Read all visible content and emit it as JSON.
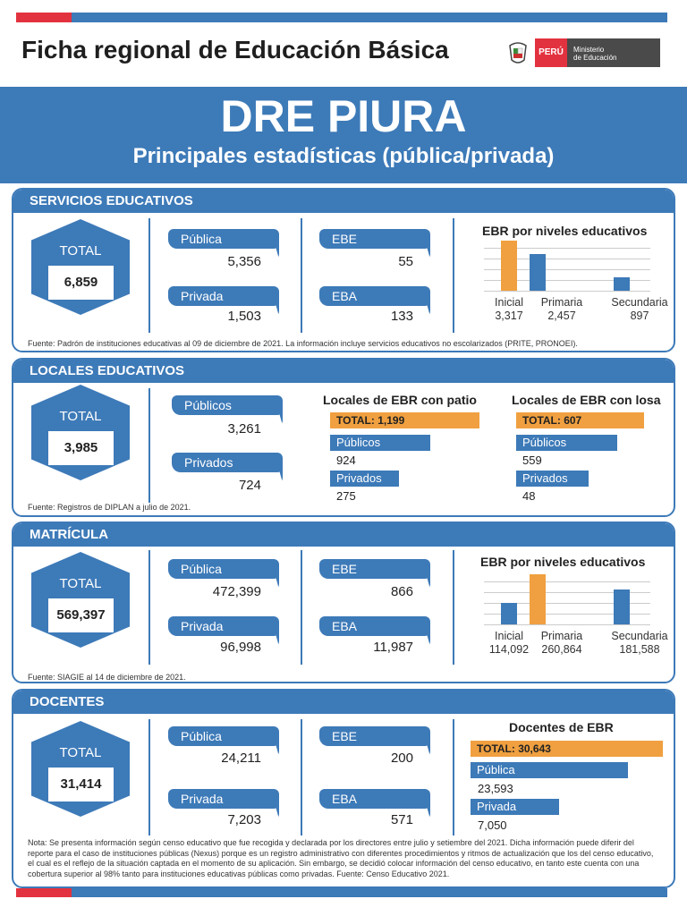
{
  "header": {
    "title": "Ficha regional de Educación Básica",
    "logo_peru": "PERÚ",
    "logo_ministry_1": "Ministerio",
    "logo_ministry_2": "de Educación"
  },
  "banner": {
    "title": "DRE PIURA",
    "subtitle": "Principales estadísticas (pública/privada)"
  },
  "colors": {
    "blue": "#3d7ab8",
    "red": "#e3323f",
    "orange": "#f0a040"
  },
  "servicios": {
    "title": "SERVICIOS EDUCATIVOS",
    "total_label": "TOTAL",
    "total": "6,859",
    "publica_label": "Pública",
    "publica": "5,356",
    "privada_label": "Privada",
    "privada": "1,503",
    "ebe_label": "EBE",
    "ebe": "55",
    "eba_label": "EBA",
    "eba": "133",
    "source": "Fuente: Padrón de instituciones educativas al 09 de diciembre de 2021. La información incluye servicios educativos no escolarizados (PRITE, PRONOEI)."
  },
  "locales": {
    "title": "LOCALES EDUCATIVOS",
    "total_label": "TOTAL",
    "total": "3,985",
    "publicos_label": "Públicos",
    "publicos": "3,261",
    "privados_label": "Privados",
    "privados": "724",
    "patio": {
      "title": "Locales de EBR con patio",
      "total": "TOTAL: 1,199",
      "publicos_label": "Públicos",
      "publicos": "924",
      "privados_label": "Privados",
      "privados": "275"
    },
    "losa": {
      "title": "Locales de EBR con losa",
      "total": "TOTAL: 607",
      "publicos_label": "Públicos",
      "publicos": "559",
      "privados_label": "Privados",
      "privados": "48"
    },
    "source": "Fuente: Registros de DIPLAN a julio de 2021."
  },
  "matricula": {
    "title": "MATRÍCULA",
    "total_label": "TOTAL",
    "total": "569,397",
    "publica_label": "Pública",
    "publica": "472,399",
    "privada_label": "Privada",
    "privada": "96,998",
    "ebe_label": "EBE",
    "ebe": "866",
    "eba_label": "EBA",
    "eba": "11,987",
    "source": "Fuente: SIAGIE al 14 de diciembre de 2021."
  },
  "docentes": {
    "title": "DOCENTES",
    "total_label": "TOTAL",
    "total": "31,414",
    "publica_label": "Pública",
    "publica": "24,211",
    "privada_label": "Privada",
    "privada": "7,203",
    "ebe_label": "EBE",
    "ebe": "200",
    "eba_label": "EBA",
    "eba": "571",
    "chart": {
      "title": "Docentes de EBR",
      "total": "TOTAL: 30,643",
      "publica_label": "Pública",
      "publica": "23,593",
      "privada_label": "Privada",
      "privada": "7,050"
    },
    "note": "Nota: Se presenta información según censo educativo que fue recogida y declarada por los directores entre julio y setiembre del 2021. Dicha información puede diferir del reporte para el caso de instituciones públicas (Nexus) porque es un registro administrativo con diferentes procedimientos y ritmos de actualización que los del censo educativo, el cual es el reflejo de la situación captada en el momento de su aplicación. Sin embargo, se decidió colocar  información del censo educativo, en tanto este cuenta con una cobertura superior al 98% tanto para instituciones educativas públicas como privadas. Fuente: Censo Educativo 2021."
  },
  "chart_data": [
    {
      "type": "bar",
      "title": "EBR por niveles educativos",
      "categories": [
        "Inicial",
        "Primaria",
        "Secundaria"
      ],
      "values": [
        3317,
        2457,
        897
      ],
      "value_labels": [
        "3,317",
        "2,457",
        "897"
      ],
      "colors": [
        "#f0a040",
        "#3d7ab8",
        "#3d7ab8"
      ],
      "grid": true
    },
    {
      "type": "bar",
      "title": "EBR por niveles educativos",
      "categories": [
        "Inicial",
        "Primaria",
        "Secundaria"
      ],
      "values": [
        114092,
        260864,
        181588
      ],
      "value_labels": [
        "114,092",
        "260,864",
        "181,588"
      ],
      "colors": [
        "#3d7ab8",
        "#f0a040",
        "#3d7ab8"
      ],
      "grid": true
    },
    {
      "type": "bar",
      "orientation": "horizontal",
      "title": "Locales de EBR con patio",
      "categories": [
        "TOTAL",
        "Públicos",
        "Privados"
      ],
      "values": [
        1199,
        924,
        275
      ]
    },
    {
      "type": "bar",
      "orientation": "horizontal",
      "title": "Locales de EBR con losa",
      "categories": [
        "TOTAL",
        "Públicos",
        "Privados"
      ],
      "values": [
        607,
        559,
        48
      ]
    },
    {
      "type": "bar",
      "orientation": "horizontal",
      "title": "Docentes de EBR",
      "categories": [
        "TOTAL",
        "Pública",
        "Privada"
      ],
      "values": [
        30643,
        23593,
        7050
      ]
    }
  ]
}
